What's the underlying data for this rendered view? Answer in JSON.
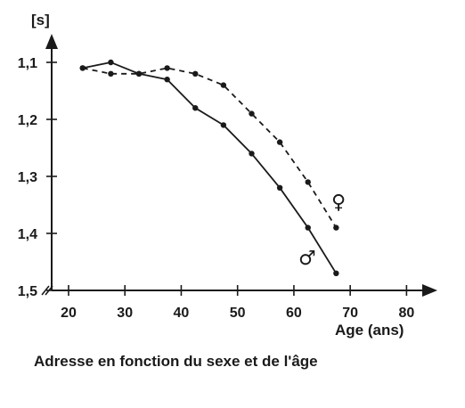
{
  "chart_data": {
    "type": "line",
    "title": "",
    "caption": "Adresse en fonction du sexe et de l'âge",
    "xlabel": "Age (ans)",
    "ylabel": "[s]",
    "xlim": [
      17,
      85
    ],
    "ylim": [
      1.5,
      1.05
    ],
    "y_inverted": true,
    "x_ticks": [
      20,
      30,
      40,
      50,
      60,
      70,
      80
    ],
    "x_tick_labels": [
      "20",
      "30",
      "40",
      "50",
      "60",
      "70",
      "80"
    ],
    "y_ticks": [
      1.1,
      1.2,
      1.3,
      1.4,
      1.5
    ],
    "y_tick_labels": [
      "1,1",
      "1,2",
      "1,3",
      "1,4",
      "1,5"
    ],
    "grid": false,
    "line_color": "#1a1a1a",
    "series": [
      {
        "name": "♂",
        "style": "solid",
        "x": [
          22.5,
          27.5,
          32.5,
          37.5,
          42.5,
          47.5,
          52.5,
          57.5,
          62.5,
          67.5
        ],
        "y": [
          1.11,
          1.1,
          1.12,
          1.13,
          1.18,
          1.21,
          1.26,
          1.32,
          1.39,
          1.47
        ]
      },
      {
        "name": "♀",
        "style": "dashed",
        "x": [
          22.5,
          27.5,
          32.5,
          37.5,
          42.5,
          47.5,
          52.5,
          57.5,
          62.5,
          67.5
        ],
        "y": [
          1.11,
          1.12,
          1.12,
          1.11,
          1.12,
          1.14,
          1.19,
          1.24,
          1.31,
          1.39
        ]
      }
    ]
  }
}
